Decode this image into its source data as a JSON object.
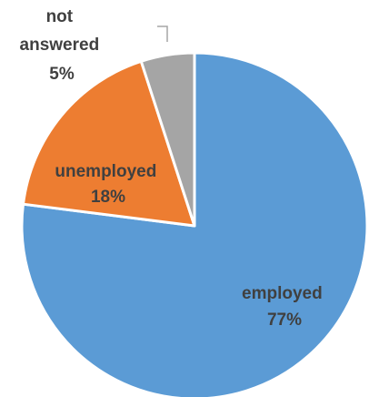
{
  "chart_data": {
    "type": "pie",
    "title": "",
    "slices": [
      {
        "label": "employed",
        "value": 77,
        "value_label": "77%",
        "color": "#5B9BD5",
        "text_color": "#404040"
      },
      {
        "label": "unemployed",
        "value": 18,
        "value_label": "18%",
        "color": "#ED7D31",
        "text_color": "#404040"
      },
      {
        "label": "not answered",
        "label_lines": [
          "not",
          "answered"
        ],
        "value": 5,
        "value_label": "5%",
        "color": "#A5A5A5",
        "text_color": "#404040"
      }
    ],
    "start_angle": "12 o'clock",
    "direction": "clockwise",
    "slice_border_color": "#FFFFFF",
    "leader_line_color": "#A5A5A5",
    "legend": "none"
  }
}
